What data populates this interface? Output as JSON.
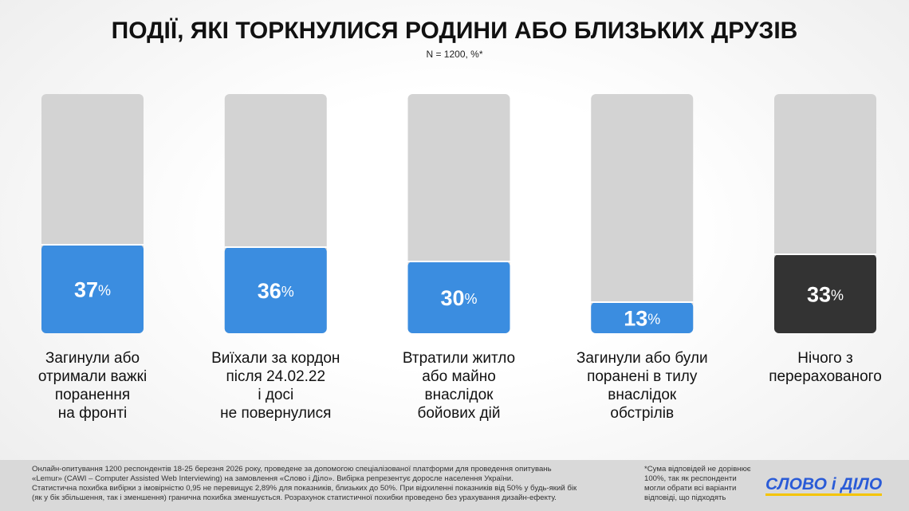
{
  "chart_data": {
    "type": "bar",
    "title": "ПОДІЇ, ЯКІ ТОРКНУЛИСЯ РОДИНИ АБО БЛИЗЬКИХ ДРУЗІВ",
    "subtitle": "N = 1200, %*",
    "categories": [
      "Загинули або\nотримали важкі\nпоранення\nна фронті",
      "Виїхали за кордон\nпісля 24.02.22\nі досі\nне повернулися",
      "Втратили житло\nабо майно\nвнаслідок\nбойових дій",
      "Загинули або були\nпоранені в тилу\nвнаслідок\nобстрілів",
      "Нічого з\nперерахованого"
    ],
    "values": [
      37,
      36,
      30,
      13,
      33
    ],
    "value_labels": [
      "37%",
      "36%",
      "30%",
      "13%",
      "33%"
    ],
    "colors": [
      "#3b8de0",
      "#3b8de0",
      "#3b8de0",
      "#3b8de0",
      "#333333"
    ],
    "track_color": "#d3d3d3",
    "ylim": [
      0,
      100
    ]
  },
  "footer": {
    "method": "Онлайн-опитування 1200 респондентів 18-25 березня 2026 року, проведене за допомогою спеціалізованої платформи для проведення опитувань\n«Lemur» (CAWI – Computer Assisted Web Interviewing) на замовлення «Слово і Діло». Вибірка репрезентує доросле населення України.\nСтатистична похибка вибірки з імовірністю 0,95 не перевищує 2,89% для показників, близьких до 50%. При відхиленні показників від 50% у будь-який бік\n(як у бік збільшення, так і зменшення) гранична похибка зменшується. Розрахунок статистичної похибки проведено без урахування дизайн-ефекту.",
    "note": "*Сума відповідей не дорівнює\n100%, так як респонденти\nмогли обрати всі варіанти\nвідповіді, що підходять",
    "logo": "СЛОВО і ДІЛО"
  }
}
